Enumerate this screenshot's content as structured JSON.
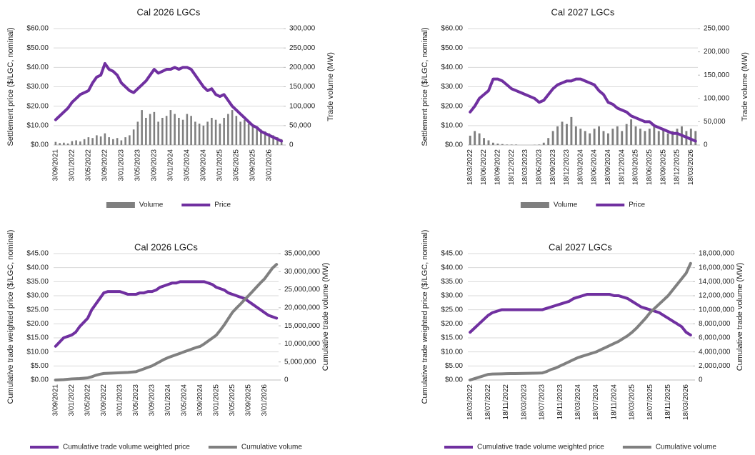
{
  "chart_data": [
    {
      "type": "combo",
      "title": "Cal 2026 LGCs",
      "y_label": "Settlement price ($/LGC, nominal)",
      "y2_label": "Trade volume (MW)",
      "grid": true,
      "categories": [
        "3/09/2021",
        null,
        null,
        null,
        "3/01/2022",
        null,
        null,
        null,
        "3/05/2022",
        null,
        null,
        null,
        "3/09/2022",
        null,
        null,
        null,
        "3/01/2023",
        null,
        null,
        null,
        "3/05/2023",
        null,
        null,
        null,
        "3/09/2023",
        null,
        null,
        null,
        "3/01/2024",
        null,
        null,
        null,
        "3/05/2024",
        null,
        null,
        null,
        "3/09/2024",
        null,
        null,
        null,
        "3/01/2025",
        null,
        null,
        null,
        "3/05/2025",
        null,
        null,
        null,
        "3/09/2025",
        null,
        null,
        null,
        "3/01/2026",
        null,
        null,
        null
      ],
      "series": [
        {
          "name": "Volume",
          "type": "bar",
          "axis": "y2",
          "color": "#7f7f7f",
          "values": [
            8000,
            5000,
            6000,
            4000,
            10000,
            12000,
            9000,
            15000,
            20000,
            18000,
            25000,
            22000,
            30000,
            20000,
            15000,
            18000,
            12000,
            20000,
            25000,
            40000,
            60000,
            90000,
            70000,
            80000,
            85000,
            60000,
            70000,
            75000,
            90000,
            80000,
            70000,
            65000,
            80000,
            75000,
            60000,
            55000,
            50000,
            60000,
            70000,
            65000,
            55000,
            70000,
            80000,
            90000,
            75000,
            60000,
            65000,
            55000,
            50000,
            45000,
            40000,
            35000,
            30000,
            25000,
            20000,
            15000
          ]
        },
        {
          "name": "Price",
          "type": "line",
          "color": "#7030a0",
          "values": [
            13,
            15,
            17,
            19,
            22,
            24,
            26,
            27,
            28,
            32,
            35,
            36,
            42,
            39,
            38,
            36,
            32,
            30,
            28,
            27,
            29,
            31,
            33,
            36,
            39,
            37,
            38,
            39,
            39,
            40,
            39,
            40,
            40,
            39,
            36,
            33,
            30,
            28,
            29,
            26,
            25,
            26,
            23,
            20,
            18,
            16,
            14,
            12,
            10,
            9,
            7,
            6,
            5,
            4,
            3,
            2
          ]
        }
      ],
      "ylim": [
        0,
        60
      ],
      "yticks": [
        {
          "value": 0,
          "label": "$0.00"
        },
        {
          "value": 10,
          "label": "$10.00"
        },
        {
          "value": 20,
          "label": "$20.00"
        },
        {
          "value": 30,
          "label": "$30.00"
        },
        {
          "value": 40,
          "label": "$40.00"
        },
        {
          "value": 50,
          "label": "$50.00"
        },
        {
          "value": 60,
          "label": "$60.00"
        }
      ],
      "y2lim": [
        0,
        300000
      ],
      "y2ticks": [
        0,
        {
          "value": 50000,
          "label": "50,000"
        },
        {
          "value": 100000,
          "label": "100,000"
        },
        {
          "value": 150000,
          "label": "150,000"
        },
        {
          "value": 200000,
          "label": "200,000"
        },
        {
          "value": 250000,
          "label": "250,000"
        },
        {
          "value": 300000,
          "label": "300,000"
        }
      ]
    },
    {
      "type": "combo",
      "title": "Cal 2027 LGCs",
      "y_label": "Settlement price ($/LGC, nominal)",
      "y2_label": "Trade volume (MW)",
      "grid": true,
      "categories": [
        "18/03/2022",
        null,
        null,
        "18/06/2022",
        null,
        null,
        "18/09/2022",
        null,
        null,
        "18/12/2022",
        null,
        null,
        "18/03/2023",
        null,
        null,
        "18/06/2023",
        null,
        null,
        "18/09/2023",
        null,
        null,
        "18/12/2023",
        null,
        null,
        "18/03/2024",
        null,
        null,
        "18/06/2024",
        null,
        null,
        "18/09/2024",
        null,
        null,
        "18/12/2024",
        null,
        null,
        "18/03/2025",
        null,
        null,
        "18/06/2025",
        null,
        null,
        "18/09/2025",
        null,
        null,
        "18/12/2025",
        null,
        null,
        "18/03/2026",
        null
      ],
      "series": [
        {
          "name": "Volume",
          "type": "bar",
          "axis": "y2",
          "color": "#7f7f7f",
          "values": [
            20000,
            30000,
            25000,
            15000,
            10000,
            5000,
            3000,
            2000,
            1000,
            1000,
            1000,
            0,
            0,
            0,
            500,
            1000,
            5000,
            15000,
            30000,
            40000,
            50000,
            45000,
            60000,
            40000,
            35000,
            30000,
            25000,
            35000,
            40000,
            30000,
            25000,
            35000,
            40000,
            30000,
            45000,
            55000,
            40000,
            35000,
            30000,
            35000,
            40000,
            30000,
            35000,
            25000,
            30000,
            35000,
            40000,
            30000,
            35000,
            30000
          ]
        },
        {
          "name": "Price",
          "type": "line",
          "color": "#7030a0",
          "values": [
            17,
            20,
            24,
            26,
            28,
            34,
            34,
            33,
            31,
            29,
            28,
            27,
            26,
            25,
            24,
            22,
            23,
            26,
            29,
            31,
            32,
            33,
            33,
            34,
            34,
            33,
            32,
            31,
            28,
            26,
            22,
            21,
            19,
            18,
            17,
            15,
            14,
            13,
            12,
            12,
            10,
            9,
            8,
            7,
            6,
            6,
            5,
            4,
            3,
            2
          ]
        }
      ],
      "ylim": [
        0,
        60
      ],
      "yticks": [
        {
          "value": 0,
          "label": "$0.00"
        },
        {
          "value": 10,
          "label": "$10.00"
        },
        {
          "value": 20,
          "label": "$20.00"
        },
        {
          "value": 30,
          "label": "$30.00"
        },
        {
          "value": 40,
          "label": "$40.00"
        },
        {
          "value": 50,
          "label": "$50.00"
        },
        {
          "value": 60,
          "label": "$60.00"
        }
      ],
      "y2lim": [
        0,
        250000
      ],
      "y2ticks": [
        0,
        {
          "value": 50000,
          "label": "50,000"
        },
        {
          "value": 100000,
          "label": "100,000"
        },
        {
          "value": 150000,
          "label": "150,000"
        },
        {
          "value": 200000,
          "label": "200,000"
        },
        {
          "value": 250000,
          "label": "250,000"
        }
      ]
    },
    {
      "type": "line",
      "title": "Cal 2026 LGCs",
      "y_label": "Cumulative trade  weighted price ($/LGC, nominal)",
      "y2_label": "Cumulative trade volume (MW)",
      "grid": true,
      "categories": [
        "3/09/2021",
        null,
        null,
        null,
        "3/01/2022",
        null,
        null,
        null,
        "3/05/2022",
        null,
        null,
        null,
        "3/09/2022",
        null,
        null,
        null,
        "3/01/2023",
        null,
        null,
        null,
        "3/05/2023",
        null,
        null,
        null,
        "3/09/2023",
        null,
        null,
        null,
        "3/01/2024",
        null,
        null,
        null,
        "3/05/2024",
        null,
        null,
        null,
        "3/09/2024",
        null,
        null,
        null,
        "3/01/2025",
        null,
        null,
        null,
        "3/05/2025",
        null,
        null,
        null,
        "3/09/2025",
        null,
        null,
        null,
        "3/01/2026",
        null,
        null,
        null
      ],
      "series": [
        {
          "name": "Cumulative trade volume weighted price",
          "color": "#7030a0",
          "values": [
            12,
            13.5,
            15,
            15.5,
            16,
            17,
            19,
            20.5,
            22,
            25,
            27,
            29,
            31,
            31.5,
            31.5,
            31.5,
            31.5,
            31,
            30.5,
            30.5,
            30.5,
            31,
            31,
            31.5,
            31.5,
            32,
            33,
            33.5,
            34,
            34.5,
            34.5,
            35,
            35,
            35,
            35,
            35,
            35,
            35,
            34.5,
            34,
            33,
            32.5,
            32,
            31,
            30.5,
            30,
            29.5,
            29,
            28,
            27,
            26,
            25,
            24,
            23,
            22.5,
            22
          ]
        },
        {
          "name": "Cumulative volume",
          "color": "#808080",
          "axis": "y2",
          "values": [
            0,
            50000,
            100000,
            200000,
            300000,
            350000,
            400000,
            500000,
            600000,
            900000,
            1300000,
            1600000,
            1800000,
            1850000,
            1900000,
            1950000,
            2000000,
            2050000,
            2100000,
            2200000,
            2300000,
            2700000,
            3100000,
            3500000,
            3900000,
            4500000,
            5100000,
            5700000,
            6200000,
            6600000,
            7000000,
            7400000,
            7800000,
            8200000,
            8600000,
            9000000,
            9300000,
            10000000,
            10800000,
            11600000,
            12400000,
            13800000,
            15300000,
            17000000,
            18700000,
            19900000,
            21000000,
            22200000,
            23300000,
            24500000,
            25700000,
            26900000,
            28000000,
            29500000,
            31000000,
            32000000
          ]
        }
      ],
      "ylim": [
        0,
        45
      ],
      "yticks": [
        {
          "value": 0,
          "label": "$0.00"
        },
        {
          "value": 5,
          "label": "$5.00"
        },
        {
          "value": 10,
          "label": "$10.00"
        },
        {
          "value": 15,
          "label": "$15.00"
        },
        {
          "value": 20,
          "label": "$20.00"
        },
        {
          "value": 25,
          "label": "$25.00"
        },
        {
          "value": 30,
          "label": "$30.00"
        },
        {
          "value": 35,
          "label": "$35.00"
        },
        {
          "value": 40,
          "label": "$40.00"
        },
        {
          "value": 45,
          "label": "$45.00"
        }
      ],
      "y2lim": [
        0,
        35000000
      ],
      "y2ticks": [
        0,
        {
          "value": 5000000,
          "label": "5,000,000"
        },
        {
          "value": 10000000,
          "label": "10,000,000"
        },
        {
          "value": 15000000,
          "label": "15,000,000"
        },
        {
          "value": 20000000,
          "label": "20,000,000"
        },
        {
          "value": 25000000,
          "label": "25,000,000"
        },
        {
          "value": 30000000,
          "label": "30,000,000"
        },
        {
          "value": 35000000,
          "label": "35,000,000"
        }
      ]
    },
    {
      "type": "line",
      "title": "Cal 2027 LGCs",
      "y_label": "Cumulative trade  weighted price ($/LGC, nominal)",
      "y2_label": "Cumulative trade volume (MW)",
      "grid": true,
      "categories": [
        "18/03/2022",
        null,
        null,
        null,
        "18/07/2022",
        null,
        null,
        null,
        "18/11/2022",
        null,
        null,
        null,
        "18/03/2023",
        null,
        null,
        null,
        "18/07/2023",
        null,
        null,
        null,
        "18/11/2023",
        null,
        null,
        null,
        "18/03/2024",
        null,
        null,
        null,
        "18/07/2024",
        null,
        null,
        null,
        "18/11/2024",
        null,
        null,
        null,
        "18/03/2025",
        null,
        null,
        null,
        "18/07/2025",
        null,
        null,
        null,
        "18/11/2025",
        null,
        null,
        null,
        "18/03/2026",
        null
      ],
      "series": [
        {
          "name": "Cumulative trade volume weighted price",
          "color": "#7030a0",
          "values": [
            17,
            18.5,
            20,
            21.5,
            23,
            24,
            24.5,
            25,
            25,
            25,
            25,
            25,
            25,
            25,
            25,
            25,
            25,
            25.5,
            26,
            26.5,
            27,
            27.5,
            28,
            29,
            29.5,
            30,
            30.5,
            30.5,
            30.5,
            30.5,
            30.5,
            30.5,
            30,
            30,
            29.5,
            29,
            28,
            27,
            26,
            25.5,
            25,
            24.5,
            24,
            23,
            22,
            21,
            20,
            19,
            17,
            16
          ]
        },
        {
          "name": "Cumulative volume",
          "color": "#808080",
          "axis": "y2",
          "values": [
            0,
            200000,
            400000,
            600000,
            800000,
            850000,
            870000,
            880000,
            900000,
            910000,
            920000,
            930000,
            940000,
            950000,
            960000,
            980000,
            1000000,
            1200000,
            1500000,
            1700000,
            2000000,
            2300000,
            2600000,
            2900000,
            3200000,
            3400000,
            3600000,
            3800000,
            4000000,
            4300000,
            4600000,
            4900000,
            5200000,
            5500000,
            5900000,
            6300000,
            6800000,
            7400000,
            8100000,
            8800000,
            9600000,
            10200000,
            10800000,
            11400000,
            12000000,
            12800000,
            13600000,
            14400000,
            15200000,
            16600000
          ]
        }
      ],
      "ylim": [
        0,
        45
      ],
      "yticks": [
        {
          "value": 0,
          "label": "$0.00"
        },
        {
          "value": 5,
          "label": "$5.00"
        },
        {
          "value": 10,
          "label": "$10.00"
        },
        {
          "value": 15,
          "label": "$15.00"
        },
        {
          "value": 20,
          "label": "$20.00"
        },
        {
          "value": 25,
          "label": "$25.00"
        },
        {
          "value": 30,
          "label": "$30.00"
        },
        {
          "value": 35,
          "label": "$35.00"
        },
        {
          "value": 40,
          "label": "$40.00"
        },
        {
          "value": 45,
          "label": "$45.00"
        }
      ],
      "y2lim": [
        0,
        18000000
      ],
      "y2ticks": [
        0,
        {
          "value": 2000000,
          "label": "2,000,000"
        },
        {
          "value": 4000000,
          "label": "4,000,000"
        },
        {
          "value": 6000000,
          "label": "6,000,000"
        },
        {
          "value": 8000000,
          "label": "8,000,000"
        },
        {
          "value": 10000000,
          "label": "10,000,000"
        },
        {
          "value": 12000000,
          "label": "12,000,000"
        },
        {
          "value": 14000000,
          "label": "14,000,000"
        },
        {
          "value": 16000000,
          "label": "16,000,000"
        },
        {
          "value": 18000000,
          "label": "18,000,000"
        }
      ]
    }
  ]
}
